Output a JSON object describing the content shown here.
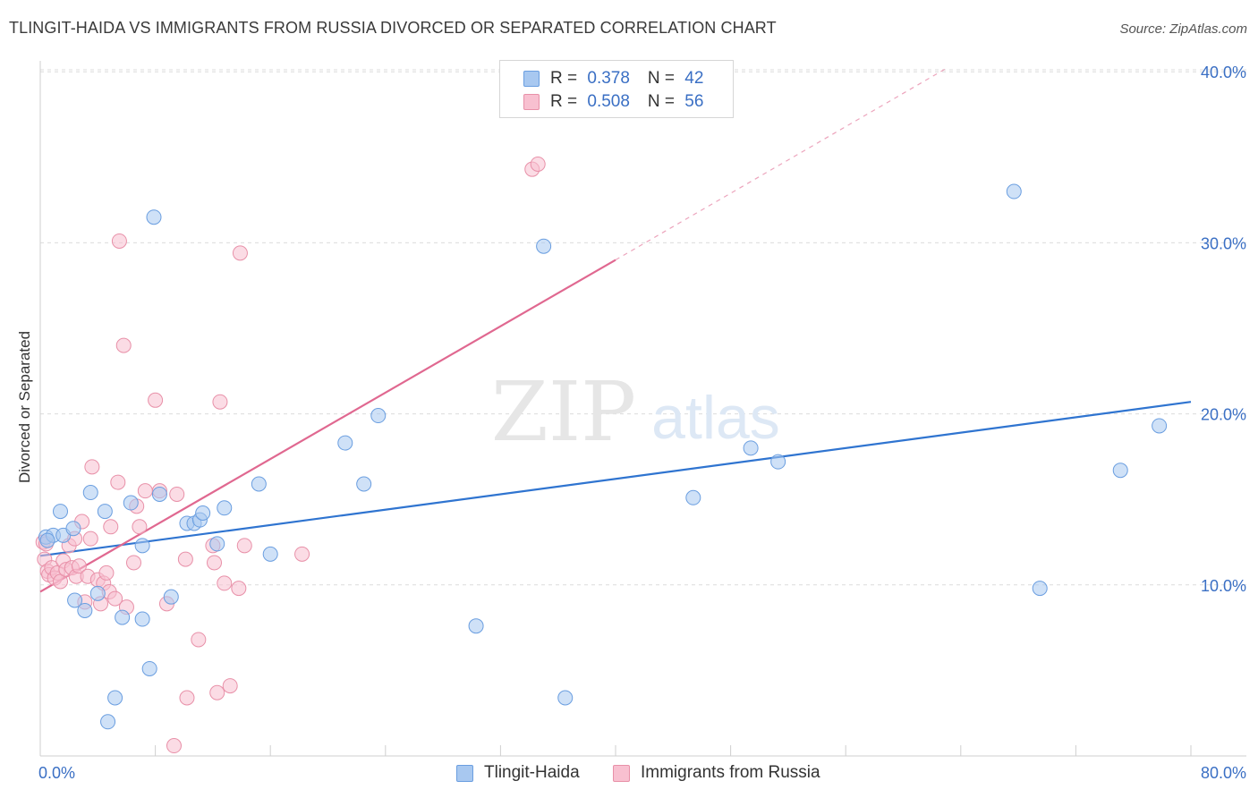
{
  "title": "TLINGIT-HAIDA VS IMMIGRANTS FROM RUSSIA DIVORCED OR SEPARATED CORRELATION CHART",
  "source": "Source: ZipAtlas.com",
  "watermark": {
    "zip": "ZIP",
    "atlas": "atlas"
  },
  "legend": {
    "rows": [
      {
        "r_label": "R = ",
        "r_value": "0.378",
        "n_label": "N = ",
        "n_value": "42",
        "color": "#a8c8f0",
        "border": "#6a9ee0"
      },
      {
        "r_label": "R = ",
        "r_value": "0.508",
        "n_label": "N = ",
        "n_value": "56",
        "color": "#f8c0d0",
        "border": "#e890a8"
      }
    ]
  },
  "bottom_legend": [
    {
      "label": "Tlingit-Haida",
      "color": "#a8c8f0",
      "border": "#6a9ee0"
    },
    {
      "label": "Immigrants from Russia",
      "color": "#f8c0d0",
      "border": "#e890a8"
    }
  ],
  "chart_data": {
    "type": "scatter",
    "title": "TLINGIT-HAIDA VS IMMIGRANTS FROM RUSSIA DIVORCED OR SEPARATED CORRELATION CHART",
    "xlabel": "",
    "ylabel": "Divorced or Separated",
    "xlim": [
      0,
      80
    ],
    "ylim": [
      0,
      42
    ],
    "x_tick_labels": [
      "0.0%",
      "80.0%"
    ],
    "y_ticks": [
      10,
      20,
      30,
      40
    ],
    "y_tick_labels": [
      "10.0%",
      "20.0%",
      "30.0%",
      "40.0%"
    ],
    "grid": true,
    "series": [
      {
        "name": "Tlingit-Haida",
        "color": "#6a9ee0",
        "fill": "#a8c8f0",
        "line_color": "#2f74d0",
        "trend": {
          "x0": 0,
          "y0": 11.7,
          "x1": 80,
          "y1": 20.7
        },
        "points": [
          [
            0.4,
            12.8
          ],
          [
            0.9,
            12.9
          ],
          [
            1.4,
            14.3
          ],
          [
            1.6,
            12.9
          ],
          [
            2.3,
            13.3
          ],
          [
            2.4,
            9.1
          ],
          [
            3.1,
            8.5
          ],
          [
            3.5,
            15.4
          ],
          [
            4.0,
            9.5
          ],
          [
            4.5,
            14.3
          ],
          [
            4.7,
            2.0
          ],
          [
            5.2,
            3.4
          ],
          [
            5.7,
            8.1
          ],
          [
            6.3,
            14.8
          ],
          [
            7.1,
            8.0
          ],
          [
            7.1,
            12.3
          ],
          [
            7.6,
            5.1
          ],
          [
            7.9,
            31.5
          ],
          [
            8.3,
            15.3
          ],
          [
            9.1,
            9.3
          ],
          [
            10.2,
            13.6
          ],
          [
            10.7,
            13.6
          ],
          [
            11.1,
            13.8
          ],
          [
            11.3,
            14.2
          ],
          [
            12.3,
            12.4
          ],
          [
            12.8,
            14.5
          ],
          [
            15.2,
            15.9
          ],
          [
            16.0,
            11.8
          ],
          [
            21.2,
            18.3
          ],
          [
            22.5,
            15.9
          ],
          [
            23.5,
            19.9
          ],
          [
            30.3,
            7.6
          ],
          [
            35.0,
            29.8
          ],
          [
            36.5,
            3.4
          ],
          [
            45.4,
            15.1
          ],
          [
            49.4,
            18.0
          ],
          [
            51.3,
            17.2
          ],
          [
            67.7,
            33.0
          ],
          [
            69.5,
            9.8
          ],
          [
            75.1,
            16.7
          ],
          [
            77.8,
            19.3
          ],
          [
            0.5,
            12.6
          ]
        ]
      },
      {
        "name": "Immigrants from Russia",
        "color": "#e890a8",
        "fill": "#f8c0d0",
        "line_color": "#e06890",
        "trend": {
          "x0": 0,
          "y0": 9.6,
          "x1": 40,
          "y1": 29.0
        },
        "trend_dashed_to": {
          "x1": 63,
          "y1": 40.2
        },
        "points": [
          [
            0.2,
            12.5
          ],
          [
            0.3,
            11.5
          ],
          [
            0.5,
            10.8
          ],
          [
            0.6,
            10.6
          ],
          [
            0.8,
            11.0
          ],
          [
            1.0,
            10.4
          ],
          [
            1.2,
            10.7
          ],
          [
            1.4,
            10.2
          ],
          [
            1.6,
            11.4
          ],
          [
            1.8,
            10.9
          ],
          [
            2.0,
            12.3
          ],
          [
            2.2,
            11.0
          ],
          [
            2.4,
            12.7
          ],
          [
            2.5,
            10.5
          ],
          [
            2.7,
            11.1
          ],
          [
            2.9,
            13.7
          ],
          [
            3.1,
            9.0
          ],
          [
            3.3,
            10.5
          ],
          [
            3.5,
            12.7
          ],
          [
            3.6,
            16.9
          ],
          [
            4.0,
            10.3
          ],
          [
            4.2,
            8.9
          ],
          [
            4.4,
            10.1
          ],
          [
            4.6,
            10.7
          ],
          [
            4.8,
            9.6
          ],
          [
            4.9,
            13.4
          ],
          [
            5.2,
            9.2
          ],
          [
            5.4,
            16.0
          ],
          [
            5.5,
            30.1
          ],
          [
            5.8,
            24.0
          ],
          [
            6.0,
            8.7
          ],
          [
            6.5,
            11.3
          ],
          [
            6.7,
            14.6
          ],
          [
            6.9,
            13.4
          ],
          [
            7.3,
            15.5
          ],
          [
            8.0,
            20.8
          ],
          [
            8.3,
            15.5
          ],
          [
            8.8,
            8.9
          ],
          [
            9.3,
            0.6
          ],
          [
            9.5,
            15.3
          ],
          [
            10.1,
            11.5
          ],
          [
            10.2,
            3.4
          ],
          [
            11.0,
            6.8
          ],
          [
            12.0,
            12.3
          ],
          [
            12.1,
            11.3
          ],
          [
            12.3,
            3.7
          ],
          [
            12.5,
            20.7
          ],
          [
            12.8,
            10.1
          ],
          [
            13.2,
            4.1
          ],
          [
            13.8,
            9.8
          ],
          [
            13.9,
            29.4
          ],
          [
            14.2,
            12.3
          ],
          [
            18.2,
            11.8
          ],
          [
            34.2,
            34.3
          ],
          [
            34.6,
            34.6
          ],
          [
            0.4,
            12.4
          ]
        ]
      }
    ]
  }
}
